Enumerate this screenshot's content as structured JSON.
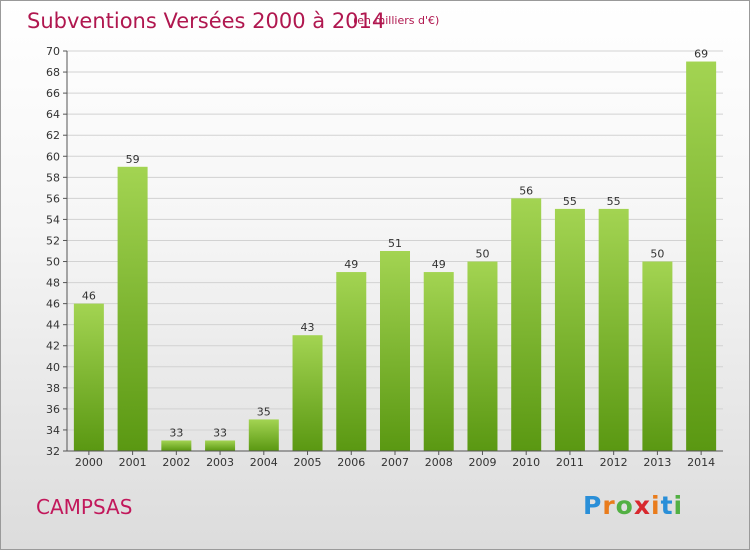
{
  "header": {
    "title": "Subventions Versées 2000 à 2014",
    "subtitle": "(en milliers d'€)"
  },
  "footer": {
    "commune": "CAMPSAS",
    "logo": "Proxiti"
  },
  "colors": {
    "title": "#b0174f",
    "bar_light": "#9ccf4a",
    "bar_dark": "#5f9e16"
  },
  "chart_data": {
    "type": "bar",
    "title": "Subventions Versées 2000 à 2014",
    "xlabel": "",
    "ylabel": "",
    "categories": [
      "2000",
      "2001",
      "2002",
      "2003",
      "2004",
      "2005",
      "2006",
      "2007",
      "2008",
      "2009",
      "2010",
      "2011",
      "2012",
      "2013",
      "2014"
    ],
    "values": [
      46,
      59,
      33,
      33,
      35,
      43,
      49,
      51,
      49,
      50,
      56,
      55,
      55,
      50,
      69
    ],
    "ylim": [
      32,
      70
    ],
    "yticks": [
      32,
      34,
      36,
      38,
      40,
      42,
      44,
      46,
      48,
      50,
      52,
      54,
      56,
      58,
      60,
      62,
      64,
      66,
      68,
      70
    ],
    "grid": true,
    "legend": "none"
  }
}
